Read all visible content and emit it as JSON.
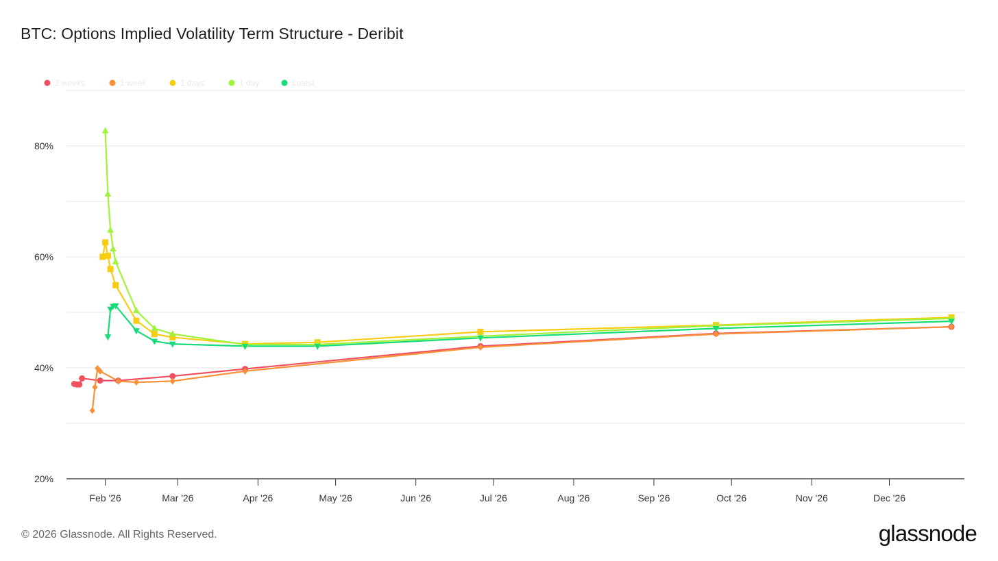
{
  "title": "BTC: Options Implied Volatility Term Structure - Deribit",
  "footer": "© 2026 Glassnode. All Rights Reserved.",
  "logo": "glassnode",
  "chart_data": {
    "type": "line",
    "title": "BTC: Options Implied Volatility Term Structure - Deribit",
    "xlabel": "",
    "ylabel": "",
    "x_type": "date",
    "xlim": [
      "2026-01-17",
      "2026-12-30"
    ],
    "ylim": [
      20,
      90
    ],
    "y_ticks": [
      20,
      40,
      60,
      80
    ],
    "y_tick_labels": [
      "20%",
      "40%",
      "60%",
      "80%"
    ],
    "x_ticks": [
      "2026-02-01",
      "2026-03-01",
      "2026-04-01",
      "2026-05-01",
      "2026-06-01",
      "2026-07-01",
      "2026-08-01",
      "2026-09-01",
      "2026-10-01",
      "2026-11-01",
      "2026-12-01"
    ],
    "x_tick_labels": [
      "Feb '26",
      "Mar '26",
      "Apr '26",
      "May '26",
      "Jun '26",
      "Jul '26",
      "Aug '26",
      "Sep '26",
      "Oct '26",
      "Nov '26",
      "Dec '26"
    ],
    "grid": true,
    "legend_position": "top-left",
    "series": [
      {
        "name": "2 weeks",
        "color": "#f0515f",
        "marker": "circle",
        "points": [
          [
            "2026-01-20",
            37.1
          ],
          [
            "2026-01-21",
            37.0
          ],
          [
            "2026-01-22",
            37.0
          ],
          [
            "2026-01-23",
            38.1
          ],
          [
            "2026-01-30",
            37.7
          ],
          [
            "2026-02-06",
            37.7
          ],
          [
            "2026-02-27",
            38.5
          ],
          [
            "2026-03-27",
            39.8
          ],
          [
            "2026-06-26",
            43.9
          ],
          [
            "2026-09-25",
            46.2
          ],
          [
            "2026-12-25",
            47.4
          ]
        ]
      },
      {
        "name": "1 week",
        "color": "#f7923a",
        "marker": "diamond",
        "points": [
          [
            "2026-01-27",
            32.3
          ],
          [
            "2026-01-28",
            36.5
          ],
          [
            "2026-01-29",
            39.9
          ],
          [
            "2026-01-30",
            39.4
          ],
          [
            "2026-02-06",
            37.6
          ],
          [
            "2026-02-13",
            37.4
          ],
          [
            "2026-02-27",
            37.6
          ],
          [
            "2026-03-27",
            39.4
          ],
          [
            "2026-06-26",
            43.7
          ],
          [
            "2026-09-25",
            46.1
          ],
          [
            "2026-12-25",
            47.4
          ]
        ]
      },
      {
        "name": "1 days",
        "color": "#f7cc12",
        "marker": "square",
        "points": [
          [
            "2026-01-31",
            60.0
          ],
          [
            "2026-02-01",
            62.6
          ],
          [
            "2026-02-02",
            60.2
          ],
          [
            "2026-02-03",
            57.8
          ],
          [
            "2026-02-05",
            54.9
          ],
          [
            "2026-02-13",
            48.5
          ],
          [
            "2026-02-20",
            46.1
          ],
          [
            "2026-02-27",
            45.5
          ],
          [
            "2026-03-27",
            44.3
          ],
          [
            "2026-04-24",
            44.6
          ],
          [
            "2026-06-26",
            46.5
          ],
          [
            "2026-09-25",
            47.7
          ],
          [
            "2026-12-25",
            49.1
          ]
        ]
      },
      {
        "name": "1 day",
        "color": "#a0f23a",
        "marker": "triangle-up",
        "points": [
          [
            "2026-02-01",
            82.7
          ],
          [
            "2026-02-02",
            71.3
          ],
          [
            "2026-02-03",
            64.8
          ],
          [
            "2026-02-04",
            61.4
          ],
          [
            "2026-02-05",
            59.1
          ],
          [
            "2026-02-13",
            50.3
          ],
          [
            "2026-02-20",
            47.1
          ],
          [
            "2026-02-27",
            46.1
          ],
          [
            "2026-03-27",
            44.2
          ],
          [
            "2026-04-24",
            44.2
          ],
          [
            "2026-06-26",
            45.7
          ],
          [
            "2026-09-25",
            47.6
          ],
          [
            "2026-12-25",
            48.9
          ]
        ]
      },
      {
        "name": "Latest",
        "color": "#16db78",
        "marker": "triangle-down",
        "points": [
          [
            "2026-02-02",
            45.6
          ],
          [
            "2026-02-03",
            50.6
          ],
          [
            "2026-02-04",
            51.1
          ],
          [
            "2026-02-05",
            51.2
          ],
          [
            "2026-02-13",
            46.7
          ],
          [
            "2026-02-20",
            44.8
          ],
          [
            "2026-02-27",
            44.3
          ],
          [
            "2026-03-27",
            43.9
          ],
          [
            "2026-04-24",
            43.9
          ],
          [
            "2026-06-26",
            45.4
          ],
          [
            "2026-09-25",
            47.1
          ],
          [
            "2026-12-25",
            48.4
          ]
        ]
      }
    ]
  }
}
